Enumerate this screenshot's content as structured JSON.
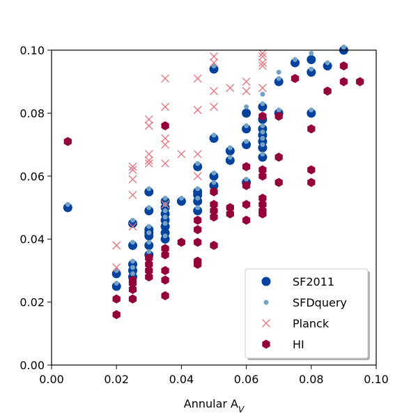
{
  "chart_data": {
    "type": "scatter",
    "title": "",
    "xlabel": "Annular A",
    "xlabel_sub": "V",
    "ylabel": "",
    "xlim": [
      0.0,
      0.1
    ],
    "ylim": [
      0.0,
      0.1
    ],
    "xticks": [
      "0.00",
      "0.02",
      "0.04",
      "0.06",
      "0.08",
      "0.10"
    ],
    "yticks": [
      "0.00",
      "0.02",
      "0.04",
      "0.06",
      "0.08",
      "0.10"
    ],
    "grid": false,
    "legend_position": "lower-right",
    "series": [
      {
        "name": "SF2011",
        "marker": "circle",
        "color": "#00429d",
        "points": [
          [
            0.005,
            0.05
          ],
          [
            0.02,
            0.025
          ],
          [
            0.02,
            0.029
          ],
          [
            0.025,
            0.028
          ],
          [
            0.025,
            0.03
          ],
          [
            0.025,
            0.032
          ],
          [
            0.025,
            0.038
          ],
          [
            0.025,
            0.045
          ],
          [
            0.03,
            0.035
          ],
          [
            0.03,
            0.038
          ],
          [
            0.03,
            0.041
          ],
          [
            0.03,
            0.042
          ],
          [
            0.03,
            0.043
          ],
          [
            0.03,
            0.049
          ],
          [
            0.03,
            0.055
          ],
          [
            0.035,
            0.04
          ],
          [
            0.035,
            0.042
          ],
          [
            0.035,
            0.044
          ],
          [
            0.035,
            0.046
          ],
          [
            0.035,
            0.048
          ],
          [
            0.035,
            0.05
          ],
          [
            0.035,
            0.052
          ],
          [
            0.04,
            0.052
          ],
          [
            0.045,
            0.049
          ],
          [
            0.045,
            0.052
          ],
          [
            0.045,
            0.054
          ],
          [
            0.045,
            0.055
          ],
          [
            0.045,
            0.063
          ],
          [
            0.05,
            0.057
          ],
          [
            0.05,
            0.06
          ],
          [
            0.05,
            0.072
          ],
          [
            0.05,
            0.094
          ],
          [
            0.055,
            0.065
          ],
          [
            0.055,
            0.068
          ],
          [
            0.06,
            0.058
          ],
          [
            0.06,
            0.07
          ],
          [
            0.06,
            0.075
          ],
          [
            0.06,
            0.08
          ],
          [
            0.065,
            0.066
          ],
          [
            0.065,
            0.069
          ],
          [
            0.065,
            0.071
          ],
          [
            0.065,
            0.073
          ],
          [
            0.065,
            0.075
          ],
          [
            0.065,
            0.078
          ],
          [
            0.065,
            0.082
          ],
          [
            0.07,
            0.08
          ],
          [
            0.07,
            0.09
          ],
          [
            0.075,
            0.096
          ],
          [
            0.08,
            0.08
          ],
          [
            0.08,
            0.093
          ],
          [
            0.08,
            0.097
          ],
          [
            0.085,
            0.095
          ],
          [
            0.09,
            0.1
          ]
        ]
      },
      {
        "name": "SFDquery",
        "marker": "small-circle",
        "color": "#73a2c6",
        "points": [
          [
            0.005,
            0.051
          ],
          [
            0.02,
            0.026
          ],
          [
            0.02,
            0.03
          ],
          [
            0.025,
            0.029
          ],
          [
            0.025,
            0.031
          ],
          [
            0.025,
            0.033
          ],
          [
            0.025,
            0.039
          ],
          [
            0.025,
            0.046
          ],
          [
            0.03,
            0.036
          ],
          [
            0.03,
            0.039
          ],
          [
            0.03,
            0.042
          ],
          [
            0.03,
            0.044
          ],
          [
            0.03,
            0.05
          ],
          [
            0.03,
            0.056
          ],
          [
            0.035,
            0.041
          ],
          [
            0.035,
            0.045
          ],
          [
            0.035,
            0.047
          ],
          [
            0.035,
            0.049
          ],
          [
            0.035,
            0.051
          ],
          [
            0.035,
            0.053
          ],
          [
            0.04,
            0.053
          ],
          [
            0.045,
            0.05
          ],
          [
            0.045,
            0.053
          ],
          [
            0.045,
            0.056
          ],
          [
            0.045,
            0.064
          ],
          [
            0.05,
            0.058
          ],
          [
            0.05,
            0.061
          ],
          [
            0.05,
            0.073
          ],
          [
            0.05,
            0.095
          ],
          [
            0.055,
            0.066
          ],
          [
            0.055,
            0.069
          ],
          [
            0.06,
            0.059
          ],
          [
            0.06,
            0.071
          ],
          [
            0.06,
            0.076
          ],
          [
            0.06,
            0.082
          ],
          [
            0.065,
            0.067
          ],
          [
            0.065,
            0.07
          ],
          [
            0.065,
            0.072
          ],
          [
            0.065,
            0.074
          ],
          [
            0.065,
            0.076
          ],
          [
            0.065,
            0.079
          ],
          [
            0.065,
            0.083
          ],
          [
            0.065,
            0.086
          ],
          [
            0.07,
            0.081
          ],
          [
            0.07,
            0.091
          ],
          [
            0.07,
            0.093
          ],
          [
            0.075,
            0.097
          ],
          [
            0.08,
            0.081
          ],
          [
            0.08,
            0.094
          ],
          [
            0.08,
            0.099
          ],
          [
            0.085,
            0.096
          ],
          [
            0.09,
            0.101
          ]
        ]
      },
      {
        "name": "Planck",
        "marker": "x",
        "color": "#e8707a",
        "points": [
          [
            0.02,
            0.031
          ],
          [
            0.02,
            0.038
          ],
          [
            0.025,
            0.044
          ],
          [
            0.025,
            0.054
          ],
          [
            0.025,
            0.059
          ],
          [
            0.025,
            0.062
          ],
          [
            0.025,
            0.063
          ],
          [
            0.03,
            0.064
          ],
          [
            0.03,
            0.065
          ],
          [
            0.03,
            0.067
          ],
          [
            0.03,
            0.076
          ],
          [
            0.03,
            0.078
          ],
          [
            0.035,
            0.051
          ],
          [
            0.035,
            0.064
          ],
          [
            0.035,
            0.07
          ],
          [
            0.035,
            0.072
          ],
          [
            0.035,
            0.082
          ],
          [
            0.035,
            0.091
          ],
          [
            0.04,
            0.067
          ],
          [
            0.045,
            0.06
          ],
          [
            0.045,
            0.067
          ],
          [
            0.045,
            0.081
          ],
          [
            0.045,
            0.091
          ],
          [
            0.05,
            0.082
          ],
          [
            0.05,
            0.087
          ],
          [
            0.05,
            0.096
          ],
          [
            0.05,
            0.098
          ],
          [
            0.055,
            0.088
          ],
          [
            0.06,
            0.087
          ],
          [
            0.06,
            0.09
          ],
          [
            0.065,
            0.088
          ],
          [
            0.065,
            0.095
          ],
          [
            0.065,
            0.096
          ],
          [
            0.065,
            0.098
          ],
          [
            0.065,
            0.099
          ]
        ]
      },
      {
        "name": "HI",
        "marker": "hexagon",
        "color": "#93003a",
        "points": [
          [
            0.005,
            0.071
          ],
          [
            0.02,
            0.016
          ],
          [
            0.02,
            0.021
          ],
          [
            0.025,
            0.021
          ],
          [
            0.025,
            0.024
          ],
          [
            0.025,
            0.026
          ],
          [
            0.025,
            0.027
          ],
          [
            0.03,
            0.028
          ],
          [
            0.03,
            0.03
          ],
          [
            0.03,
            0.032
          ],
          [
            0.03,
            0.034
          ],
          [
            0.035,
            0.022
          ],
          [
            0.035,
            0.027
          ],
          [
            0.035,
            0.03
          ],
          [
            0.035,
            0.035
          ],
          [
            0.035,
            0.037
          ],
          [
            0.035,
            0.076
          ],
          [
            0.04,
            0.039
          ],
          [
            0.045,
            0.032
          ],
          [
            0.045,
            0.033
          ],
          [
            0.045,
            0.039
          ],
          [
            0.045,
            0.043
          ],
          [
            0.045,
            0.046
          ],
          [
            0.05,
            0.038
          ],
          [
            0.05,
            0.047
          ],
          [
            0.05,
            0.049
          ],
          [
            0.05,
            0.051
          ],
          [
            0.05,
            0.055
          ],
          [
            0.055,
            0.048
          ],
          [
            0.055,
            0.05
          ],
          [
            0.06,
            0.046
          ],
          [
            0.06,
            0.051
          ],
          [
            0.06,
            0.057
          ],
          [
            0.06,
            0.063
          ],
          [
            0.065,
            0.048
          ],
          [
            0.065,
            0.049
          ],
          [
            0.065,
            0.051
          ],
          [
            0.065,
            0.053
          ],
          [
            0.065,
            0.06
          ],
          [
            0.065,
            0.062
          ],
          [
            0.065,
            0.079
          ],
          [
            0.07,
            0.058
          ],
          [
            0.07,
            0.066
          ],
          [
            0.07,
            0.079
          ],
          [
            0.075,
            0.091
          ],
          [
            0.08,
            0.058
          ],
          [
            0.08,
            0.062
          ],
          [
            0.08,
            0.075
          ],
          [
            0.085,
            0.087
          ],
          [
            0.09,
            0.09
          ],
          [
            0.09,
            0.095
          ],
          [
            0.095,
            0.09
          ]
        ]
      }
    ]
  }
}
